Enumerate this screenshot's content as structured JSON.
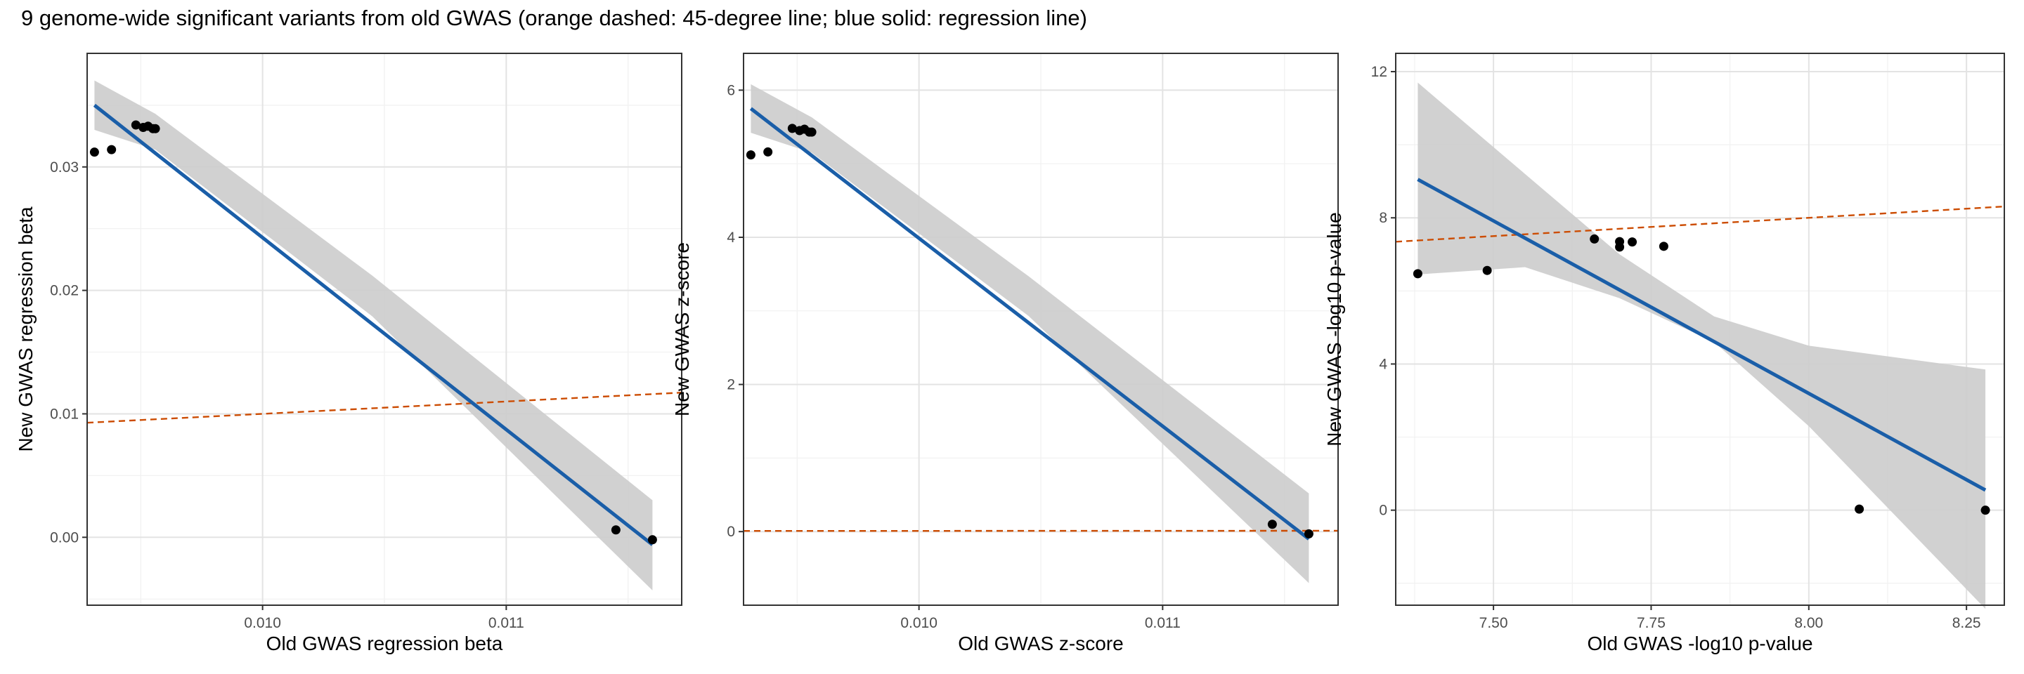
{
  "title": "9 genome-wide significant variants from old GWAS (orange dashed: 45-degree line; blue solid: regression line)",
  "colors": {
    "reference_line": "#cc4c02",
    "regression_line": "#1a5ea8",
    "confidence_band": "#cccccc",
    "points": "#000000",
    "grid_major": "#e3e3e3",
    "grid_minor": "#f1f1f1",
    "panel_border": "#333333"
  },
  "chart_data": [
    {
      "type": "scatter",
      "xlabel": "Old GWAS regression beta",
      "ylabel": "New GWAS regression beta",
      "xlim": [
        0.00928,
        0.01172
      ],
      "ylim": [
        -0.0055,
        0.0392
      ],
      "xticks": [
        0.01,
        0.011
      ],
      "xtick_labels": [
        "0.010",
        "0.011"
      ],
      "yticks": [
        0.0,
        0.01,
        0.02,
        0.03
      ],
      "ytick_labels": [
        "0.00",
        "0.01",
        "0.02",
        "0.03"
      ],
      "grid": true,
      "points": [
        {
          "x": 0.00931,
          "y": 0.0312
        },
        {
          "x": 0.00938,
          "y": 0.0314
        },
        {
          "x": 0.00948,
          "y": 0.0334
        },
        {
          "x": 0.00951,
          "y": 0.0332
        },
        {
          "x": 0.00953,
          "y": 0.0333
        },
        {
          "x": 0.00955,
          "y": 0.0331
        },
        {
          "x": 0.00956,
          "y": 0.0331
        },
        {
          "x": 0.01145,
          "y": 0.0006
        },
        {
          "x": 0.0116,
          "y": -0.0002
        }
      ],
      "regression": {
        "x": [
          0.00931,
          0.0116
        ],
        "y": [
          0.035,
          -0.0006
        ]
      },
      "ci_band": [
        {
          "x": 0.00931,
          "lo": 0.033,
          "hi": 0.037
        },
        {
          "x": 0.00956,
          "lo": 0.0314,
          "hi": 0.0343
        },
        {
          "x": 0.01045,
          "lo": 0.0179,
          "hi": 0.0212
        },
        {
          "x": 0.0116,
          "lo": -0.0043,
          "hi": 0.003
        }
      ],
      "reference_line": {
        "x": [
          0.00928,
          0.01172
        ],
        "y": [
          0.00928,
          0.01172
        ]
      }
    },
    {
      "type": "scatter",
      "xlabel": "Old GWAS z-score",
      "ylabel": "New GWAS z-score",
      "xlim": [
        0.00928,
        0.01172
      ],
      "ylim": [
        -1.0,
        6.5
      ],
      "xticks": [
        0.01,
        0.011
      ],
      "xtick_labels": [
        "0.010",
        "0.011"
      ],
      "yticks": [
        0,
        2,
        4,
        6
      ],
      "ytick_labels": [
        "0",
        "2",
        "4",
        "6"
      ],
      "grid": true,
      "points": [
        {
          "x": 0.00931,
          "y": 5.12
        },
        {
          "x": 0.00938,
          "y": 5.16
        },
        {
          "x": 0.00948,
          "y": 5.48
        },
        {
          "x": 0.00951,
          "y": 5.45
        },
        {
          "x": 0.00953,
          "y": 5.47
        },
        {
          "x": 0.00955,
          "y": 5.43
        },
        {
          "x": 0.00956,
          "y": 5.43
        },
        {
          "x": 0.01145,
          "y": 0.1
        },
        {
          "x": 0.0116,
          "y": -0.03
        }
      ],
      "regression": {
        "x": [
          0.00931,
          0.0116
        ],
        "y": [
          5.75,
          -0.1
        ]
      },
      "ci_band": [
        {
          "x": 0.00931,
          "lo": 5.42,
          "hi": 6.08
        },
        {
          "x": 0.00956,
          "lo": 5.15,
          "hi": 5.63
        },
        {
          "x": 0.01045,
          "lo": 2.93,
          "hi": 3.47
        },
        {
          "x": 0.0116,
          "lo": -0.7,
          "hi": 0.52
        }
      ],
      "reference_line": {
        "x": [
          0.00928,
          0.01172
        ],
        "y": [
          0.00928,
          0.01172
        ]
      }
    },
    {
      "type": "scatter",
      "xlabel": "Old GWAS -log10 p-value",
      "ylabel": "New GWAS -log10 p-value",
      "xlim": [
        7.345,
        8.31
      ],
      "ylim": [
        -2.6,
        12.5
      ],
      "xticks": [
        7.5,
        7.75,
        8.0,
        8.25
      ],
      "xtick_labels": [
        "7.50",
        "7.75",
        "8.00",
        "8.25"
      ],
      "yticks": [
        0,
        4,
        8,
        12
      ],
      "ytick_labels": [
        "0",
        "4",
        "8",
        "12"
      ],
      "grid": true,
      "points": [
        {
          "x": 7.38,
          "y": 6.47
        },
        {
          "x": 7.49,
          "y": 6.56
        },
        {
          "x": 7.66,
          "y": 7.42
        },
        {
          "x": 7.7,
          "y": 7.35
        },
        {
          "x": 7.7,
          "y": 7.2
        },
        {
          "x": 7.72,
          "y": 7.34
        },
        {
          "x": 7.77,
          "y": 7.22
        },
        {
          "x": 8.08,
          "y": 0.03
        },
        {
          "x": 8.28,
          "y": 0.0
        }
      ],
      "regression": {
        "x": [
          7.38,
          8.28
        ],
        "y": [
          9.05,
          0.55
        ]
      },
      "ci_band": [
        {
          "x": 7.38,
          "lo": 6.45,
          "hi": 11.7
        },
        {
          "x": 7.55,
          "lo": 6.65,
          "hi": 9.2
        },
        {
          "x": 7.7,
          "lo": 5.8,
          "hi": 7.0
        },
        {
          "x": 7.85,
          "lo": 4.6,
          "hi": 5.3
        },
        {
          "x": 8.0,
          "lo": 2.3,
          "hi": 4.5
        },
        {
          "x": 8.28,
          "lo": -2.7,
          "hi": 3.85
        }
      ],
      "reference_line": {
        "x": [
          7.345,
          8.31
        ],
        "y": [
          7.345,
          8.31
        ]
      }
    }
  ]
}
